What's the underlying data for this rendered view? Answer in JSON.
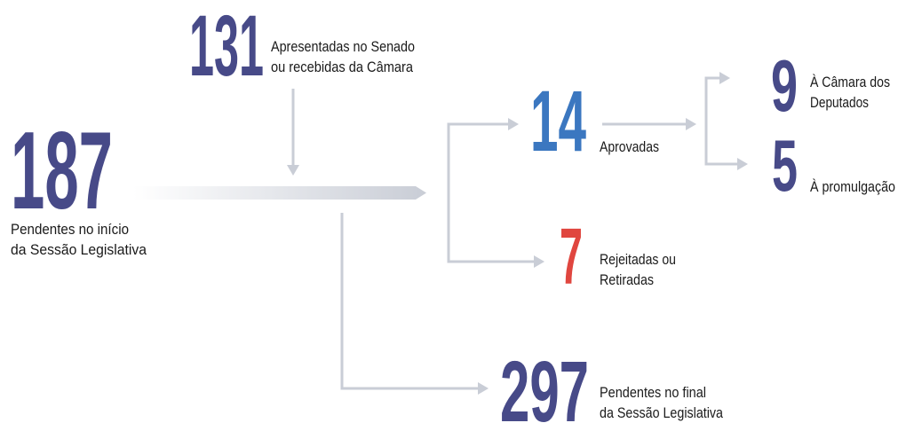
{
  "nodes": [
    {
      "number": "187",
      "color": "#474a88",
      "label": [
        "Pendentes no início",
        "da Sessão Legislativa"
      ]
    },
    {
      "number": "131",
      "color": "#474a88",
      "label": [
        "Apresentadas no Senado",
        "ou recebidas da Câmara"
      ]
    },
    {
      "number": "14",
      "color": "#3b77c0",
      "label": [
        "Aprovadas"
      ]
    },
    {
      "number": "7",
      "color": "#e0463f",
      "label": [
        "Rejeitadas ou",
        "Retiradas"
      ]
    },
    {
      "number": "9",
      "color": "#474a88",
      "label": [
        "À Câmara dos",
        "Deputados"
      ]
    },
    {
      "number": "5",
      "color": "#474a88",
      "label": [
        "À promulgação"
      ]
    },
    {
      "number": "297",
      "color": "#474a88",
      "label": [
        "Pendentes no final",
        "da Sessão Legislativa"
      ]
    }
  ]
}
